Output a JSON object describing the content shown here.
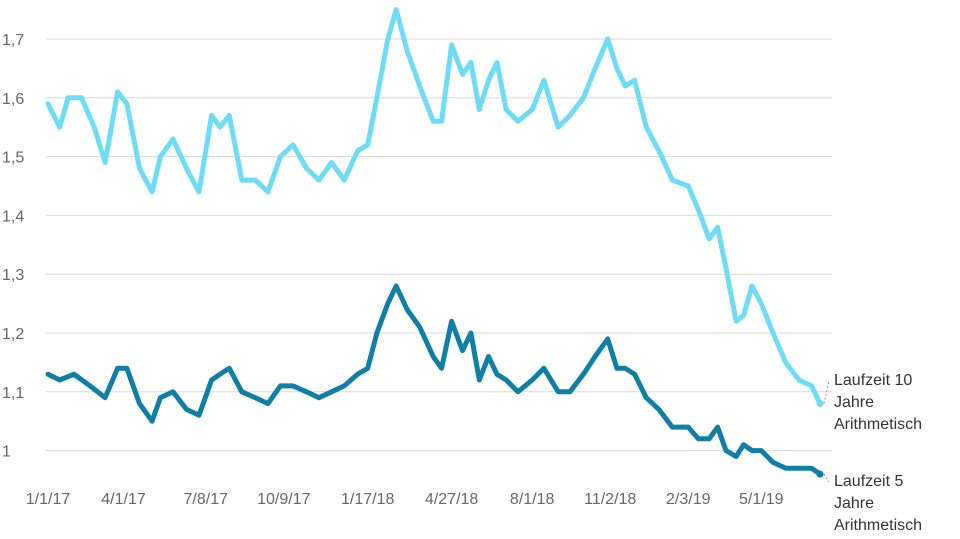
{
  "chart_data": {
    "type": "line",
    "title": "",
    "xlabel": "",
    "ylabel": "",
    "ylim": [
      0.96,
      1.76
    ],
    "yticks": [
      "1",
      "1,1",
      "1,2",
      "1,3",
      "1,4",
      "1,5",
      "1,6",
      "1,7"
    ],
    "ytick_values": [
      1.0,
      1.1,
      1.2,
      1.3,
      1.4,
      1.5,
      1.6,
      1.7
    ],
    "xticks": [
      "1/1/17",
      "4/1/17",
      "7/8/17",
      "10/9/17",
      "1/17/18",
      "4/27/18",
      "8/1/18",
      "11/2/18",
      "2/3/19",
      "5/1/19"
    ],
    "xtick_values": [
      "2017-01-01",
      "2017-04-01",
      "2017-07-08",
      "2017-10-09",
      "2018-01-17",
      "2018-04-27",
      "2018-08-01",
      "2018-11-02",
      "2019-02-03",
      "2019-05-01"
    ],
    "grid": true,
    "legend_placement": "right, at line ends",
    "series": [
      {
        "name": "Laufzeit 10 Jahre Arithmetisch",
        "color": "#6fdcf5",
        "points": [
          [
            "2017-01-01",
            1.59
          ],
          [
            "2017-01-15",
            1.55
          ],
          [
            "2017-01-25",
            1.6
          ],
          [
            "2017-02-10",
            1.6
          ],
          [
            "2017-02-25",
            1.55
          ],
          [
            "2017-03-10",
            1.49
          ],
          [
            "2017-03-25",
            1.61
          ],
          [
            "2017-04-05",
            1.59
          ],
          [
            "2017-04-20",
            1.48
          ],
          [
            "2017-05-05",
            1.44
          ],
          [
            "2017-05-15",
            1.5
          ],
          [
            "2017-05-30",
            1.53
          ],
          [
            "2017-06-15",
            1.48
          ],
          [
            "2017-06-30",
            1.44
          ],
          [
            "2017-07-15",
            1.57
          ],
          [
            "2017-07-25",
            1.55
          ],
          [
            "2017-08-05",
            1.57
          ],
          [
            "2017-08-20",
            1.46
          ],
          [
            "2017-09-05",
            1.46
          ],
          [
            "2017-09-20",
            1.44
          ],
          [
            "2017-10-05",
            1.5
          ],
          [
            "2017-10-20",
            1.52
          ],
          [
            "2017-11-05",
            1.48
          ],
          [
            "2017-11-20",
            1.46
          ],
          [
            "2017-12-05",
            1.49
          ],
          [
            "2017-12-20",
            1.46
          ],
          [
            "2018-01-05",
            1.51
          ],
          [
            "2018-01-17",
            1.52
          ],
          [
            "2018-01-28",
            1.6
          ],
          [
            "2018-02-10",
            1.7
          ],
          [
            "2018-02-20",
            1.75
          ],
          [
            "2018-03-05",
            1.68
          ],
          [
            "2018-03-20",
            1.62
          ],
          [
            "2018-04-05",
            1.56
          ],
          [
            "2018-04-15",
            1.56
          ],
          [
            "2018-04-27",
            1.69
          ],
          [
            "2018-05-10",
            1.64
          ],
          [
            "2018-05-20",
            1.66
          ],
          [
            "2018-05-30",
            1.58
          ],
          [
            "2018-06-10",
            1.63
          ],
          [
            "2018-06-20",
            1.66
          ],
          [
            "2018-07-01",
            1.58
          ],
          [
            "2018-07-15",
            1.56
          ],
          [
            "2018-08-01",
            1.58
          ],
          [
            "2018-08-15",
            1.63
          ],
          [
            "2018-09-01",
            1.55
          ],
          [
            "2018-09-15",
            1.57
          ],
          [
            "2018-10-01",
            1.6
          ],
          [
            "2018-10-15",
            1.65
          ],
          [
            "2018-10-30",
            1.7
          ],
          [
            "2018-11-10",
            1.65
          ],
          [
            "2018-11-20",
            1.62
          ],
          [
            "2018-12-01",
            1.63
          ],
          [
            "2018-12-15",
            1.55
          ],
          [
            "2018-12-30",
            1.51
          ],
          [
            "2019-01-15",
            1.46
          ],
          [
            "2019-02-03",
            1.45
          ],
          [
            "2019-02-15",
            1.41
          ],
          [
            "2019-02-28",
            1.36
          ],
          [
            "2019-03-10",
            1.38
          ],
          [
            "2019-03-20",
            1.31
          ],
          [
            "2019-04-01",
            1.22
          ],
          [
            "2019-04-10",
            1.23
          ],
          [
            "2019-04-20",
            1.28
          ],
          [
            "2019-05-01",
            1.25
          ],
          [
            "2019-05-15",
            1.2
          ],
          [
            "2019-05-30",
            1.15
          ],
          [
            "2019-06-15",
            1.12
          ],
          [
            "2019-06-30",
            1.11
          ],
          [
            "2019-07-10",
            1.08
          ]
        ]
      },
      {
        "name": "Laufzeit 5 Jahre Arithmetisch",
        "color": "#0f7fa6",
        "points": [
          [
            "2017-01-01",
            1.13
          ],
          [
            "2017-01-15",
            1.12
          ],
          [
            "2017-02-01",
            1.13
          ],
          [
            "2017-02-20",
            1.11
          ],
          [
            "2017-03-10",
            1.09
          ],
          [
            "2017-03-25",
            1.14
          ],
          [
            "2017-04-05",
            1.14
          ],
          [
            "2017-04-20",
            1.08
          ],
          [
            "2017-05-05",
            1.05
          ],
          [
            "2017-05-15",
            1.09
          ],
          [
            "2017-05-30",
            1.1
          ],
          [
            "2017-06-15",
            1.07
          ],
          [
            "2017-06-30",
            1.06
          ],
          [
            "2017-07-15",
            1.12
          ],
          [
            "2017-07-25",
            1.13
          ],
          [
            "2017-08-05",
            1.14
          ],
          [
            "2017-08-20",
            1.1
          ],
          [
            "2017-09-05",
            1.09
          ],
          [
            "2017-09-20",
            1.08
          ],
          [
            "2017-10-05",
            1.11
          ],
          [
            "2017-10-20",
            1.11
          ],
          [
            "2017-11-05",
            1.1
          ],
          [
            "2017-11-20",
            1.09
          ],
          [
            "2017-12-05",
            1.1
          ],
          [
            "2017-12-20",
            1.11
          ],
          [
            "2018-01-05",
            1.13
          ],
          [
            "2018-01-17",
            1.14
          ],
          [
            "2018-01-28",
            1.2
          ],
          [
            "2018-02-10",
            1.25
          ],
          [
            "2018-02-20",
            1.28
          ],
          [
            "2018-03-05",
            1.24
          ],
          [
            "2018-03-20",
            1.21
          ],
          [
            "2018-04-05",
            1.16
          ],
          [
            "2018-04-15",
            1.14
          ],
          [
            "2018-04-27",
            1.22
          ],
          [
            "2018-05-10",
            1.17
          ],
          [
            "2018-05-20",
            1.2
          ],
          [
            "2018-05-30",
            1.12
          ],
          [
            "2018-06-10",
            1.16
          ],
          [
            "2018-06-20",
            1.13
          ],
          [
            "2018-07-01",
            1.12
          ],
          [
            "2018-07-15",
            1.1
          ],
          [
            "2018-08-01",
            1.12
          ],
          [
            "2018-08-15",
            1.14
          ],
          [
            "2018-09-01",
            1.1
          ],
          [
            "2018-09-15",
            1.1
          ],
          [
            "2018-10-01",
            1.13
          ],
          [
            "2018-10-15",
            1.16
          ],
          [
            "2018-10-30",
            1.19
          ],
          [
            "2018-11-10",
            1.14
          ],
          [
            "2018-11-20",
            1.14
          ],
          [
            "2018-12-01",
            1.13
          ],
          [
            "2018-12-15",
            1.09
          ],
          [
            "2018-12-30",
            1.07
          ],
          [
            "2019-01-15",
            1.04
          ],
          [
            "2019-02-03",
            1.04
          ],
          [
            "2019-02-15",
            1.02
          ],
          [
            "2019-02-28",
            1.02
          ],
          [
            "2019-03-10",
            1.04
          ],
          [
            "2019-03-20",
            1.0
          ],
          [
            "2019-04-01",
            0.99
          ],
          [
            "2019-04-10",
            1.01
          ],
          [
            "2019-04-20",
            1.0
          ],
          [
            "2019-05-01",
            1.0
          ],
          [
            "2019-05-15",
            0.98
          ],
          [
            "2019-05-30",
            0.97
          ],
          [
            "2019-06-15",
            0.97
          ],
          [
            "2019-06-30",
            0.97
          ],
          [
            "2019-07-10",
            0.96
          ]
        ]
      }
    ]
  }
}
